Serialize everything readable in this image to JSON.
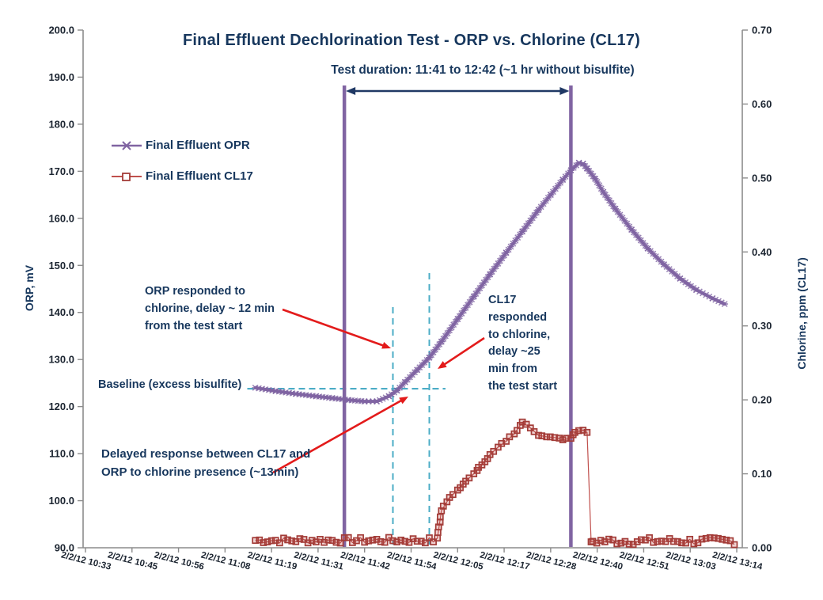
{
  "annotations": {
    "test_duration": "Test duration: 11:41 to 12:42 (~1 hr without bisulfite)",
    "orp_note": "ORP responded to\nchlorine, delay ~ 12 min\nfrom the test start",
    "cl17_note": "CL17\nresponded\nto chlorine,\ndelay ~25\nmin from\nthe test start",
    "baseline_label": "Baseline (excess bisulfite)",
    "delayed_note": "Delayed response between CL17 and\nORP to chlorine presence (~13min)"
  },
  "colors": {
    "opr_purple": "#8064A2",
    "cl17_red": "#C0504D",
    "cl17_marker_edge": "#A33C38",
    "navy_text": "#17375D",
    "navy_arrow": "#1F3864",
    "cyan_dashed": "#4BACC6",
    "red_arrow": "#E31B1B",
    "axis_gray": "#8C8C8C",
    "tick_text": "#1B2430"
  },
  "chart_data": {
    "type": "line",
    "title": "Final Effluent Dechlorination Test - ORP vs. Chlorine (CL17)",
    "x_axis": {
      "date_prefix": "2/2/12",
      "labels": [
        "10:33",
        "10:45",
        "10:56",
        "11:08",
        "11:19",
        "11:31",
        "11:42",
        "11:54",
        "12:05",
        "12:17",
        "12:28",
        "12:40",
        "12:51",
        "13:03",
        "13:14"
      ]
    },
    "y_left": {
      "label": "ORP, mV",
      "min": 90,
      "max": 200,
      "step": 10
    },
    "y_right": {
      "label": "Chlorine, ppm (CL17)",
      "min": 0.0,
      "max": 0.7,
      "step": 0.1
    },
    "grid": false,
    "legend_position": "upper-left-inside",
    "series": [
      {
        "name": "Final Effluent OPR",
        "axis": "left",
        "marker": "x-star",
        "points": [
          [
            "11:15",
            124.0
          ],
          [
            "11:20",
            123.3
          ],
          [
            "11:25",
            122.7
          ],
          [
            "11:30",
            122.2
          ],
          [
            "11:34",
            121.8
          ],
          [
            "11:38",
            121.4
          ],
          [
            "11:42",
            121.1
          ],
          [
            "11:45",
            121.1
          ],
          [
            "11:48",
            122.2
          ],
          [
            "11:50",
            123.4
          ],
          [
            "11:52",
            125.2
          ],
          [
            "11:55",
            127.8
          ],
          [
            "11:58",
            130.4
          ],
          [
            "12:01",
            133.8
          ],
          [
            "12:05",
            138.6
          ],
          [
            "12:09",
            143.4
          ],
          [
            "12:13",
            148.1
          ],
          [
            "12:17",
            152.7
          ],
          [
            "12:21",
            157.2
          ],
          [
            "12:25",
            161.8
          ],
          [
            "12:28",
            165.0
          ],
          [
            "12:31",
            168.2
          ],
          [
            "12:33",
            170.2
          ],
          [
            "12:35",
            171.8
          ],
          [
            "12:36",
            171.6
          ],
          [
            "12:37",
            170.6
          ],
          [
            "12:39",
            168.4
          ],
          [
            "12:41",
            165.6
          ],
          [
            "12:44",
            162.0
          ],
          [
            "12:48",
            157.6
          ],
          [
            "12:52",
            153.6
          ],
          [
            "12:56",
            150.2
          ],
          [
            "13:00",
            147.2
          ],
          [
            "13:04",
            144.8
          ],
          [
            "13:08",
            143.0
          ],
          [
            "13:11",
            141.8
          ]
        ]
      },
      {
        "name": "Final Effluent CL17",
        "axis": "right",
        "marker": "square",
        "flat_segments": [
          {
            "from": "11:15",
            "to": "12:00",
            "value": 0.01,
            "jitter": 0.004
          },
          {
            "from": "12:38",
            "to": "13:14",
            "value": 0.009,
            "jitter": 0.005
          }
        ],
        "points": [
          [
            "12:01",
            0.05
          ],
          [
            "12:03",
            0.068
          ],
          [
            "12:05",
            0.078
          ],
          [
            "12:07",
            0.09
          ],
          [
            "12:09",
            0.1
          ],
          [
            "12:11",
            0.112
          ],
          [
            "12:13",
            0.126
          ],
          [
            "12:15",
            0.136
          ],
          [
            "12:17",
            0.144
          ],
          [
            "12:19",
            0.154
          ],
          [
            "12:21",
            0.17
          ],
          [
            "12:23",
            0.162
          ],
          [
            "12:25",
            0.152
          ],
          [
            "12:27",
            0.15
          ],
          [
            "12:29",
            0.149
          ],
          [
            "12:31",
            0.146
          ],
          [
            "12:33",
            0.148
          ],
          [
            "12:34",
            0.156
          ],
          [
            "12:36",
            0.159
          ],
          [
            "12:37",
            0.156
          ],
          [
            "12:38",
            0.008
          ]
        ]
      }
    ],
    "event_lines": [
      {
        "at": "11:37",
        "label_time": "11:41",
        "meaning": "test start (bisulfite off)"
      },
      {
        "at": "12:33",
        "label_time": "12:42",
        "meaning": "test end (bisulfite on)"
      }
    ],
    "response_markers": [
      {
        "at": "11:49",
        "meaning": "ORP response (~12 min after start)"
      },
      {
        "at": "11:58",
        "meaning": "CL17 response (~25 min after start)"
      }
    ],
    "baseline": {
      "value_mv": 123.8,
      "from": "11:13",
      "to": "12:02"
    }
  }
}
